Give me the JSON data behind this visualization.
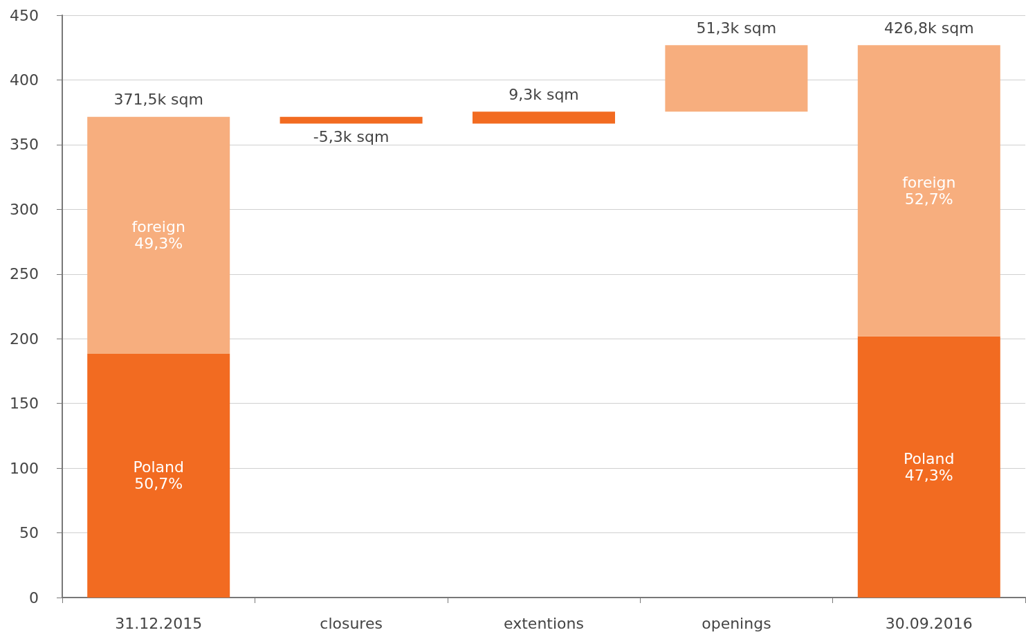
{
  "chart_data": {
    "type": "bar",
    "categories": [
      "31.12.2015",
      "closures",
      "extentions",
      "openings",
      "30.09.2016"
    ],
    "stacked": true,
    "series": [
      {
        "name": "Poland",
        "color": "#f26b21",
        "values": [
          188.4,
          null,
          null,
          null,
          201.9
        ]
      },
      {
        "name": "foreign",
        "color": "#f7ae7e",
        "values": [
          183.1,
          null,
          null,
          null,
          224.9
        ]
      },
      {
        "values": [
          null,
          -5.3,
          9.3,
          51.3,
          null
        ],
        "base": [
          null,
          371.5,
          366.2,
          375.5,
          null
        ],
        "colors": [
          null,
          "#f26b21",
          "#f26b21",
          "#f7ae7e",
          null
        ],
        "value_labels": [
          null,
          "-5,3k sqm",
          "9,3k sqm",
          "51,3k sqm",
          null
        ]
      }
    ],
    "totals": [
      "371,5k sqm",
      null,
      null,
      null,
      "426,8k sqm"
    ],
    "annotations": [
      "50,7%",
      "49,3%",
      "47,3%",
      "52,7%"
    ],
    "ylim": [
      0,
      450
    ],
    "yticks": [
      0,
      50,
      100,
      150,
      200,
      250,
      300,
      350,
      400,
      450
    ],
    "grid": "y",
    "legend": false
  }
}
